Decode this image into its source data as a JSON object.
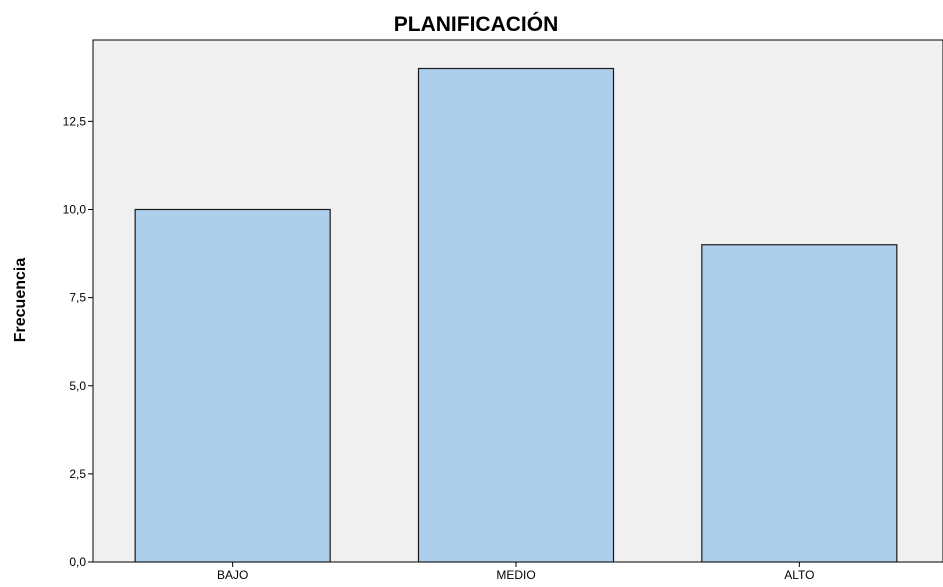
{
  "chart_data": {
    "type": "bar",
    "title": "PLANIFICACIÓN",
    "xlabel": "",
    "ylabel": "Frecuencia",
    "categories": [
      "BAJO",
      "MEDIO",
      "ALTO"
    ],
    "values": [
      10,
      14,
      9
    ],
    "ylim": [
      0,
      15
    ],
    "yticks": [
      "0,0",
      "2,5",
      "5,0",
      "7,5",
      "10,0",
      "12,5"
    ],
    "ytick_values": [
      0,
      2.5,
      5,
      7.5,
      10,
      12.5
    ],
    "grid": false,
    "legend": "none",
    "colors": {
      "bar_fill": "#aecfeb",
      "bar_stroke": "#1a1a1a",
      "plot_background": "#f0f0f0",
      "axis": "#000000"
    }
  }
}
